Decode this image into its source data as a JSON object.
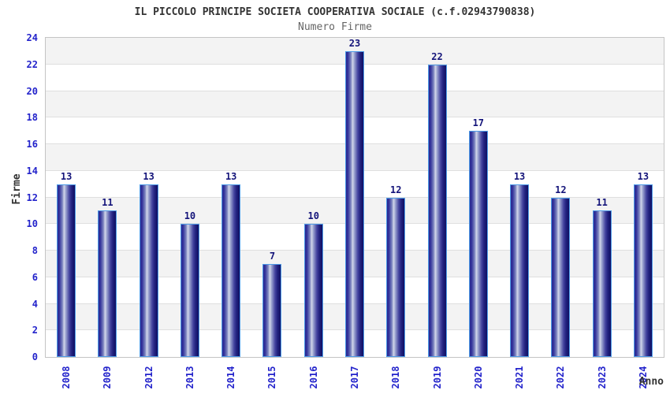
{
  "header": {
    "title": "IL PICCOLO PRINCIPE SOCIETA COOPERATIVA SOCIALE (c.f.02943790838)",
    "subtitle": "Numero Firme"
  },
  "chart_data": {
    "type": "bar",
    "title": "IL PICCOLO PRINCIPE SOCIETA COOPERATIVA SOCIALE (c.f.02943790838)",
    "subtitle": "Numero Firme",
    "xlabel": "Anno",
    "ylabel": "Firme",
    "categories": [
      "2008",
      "2009",
      "2012",
      "2013",
      "2014",
      "2015",
      "2016",
      "2017",
      "2018",
      "2019",
      "2020",
      "2021",
      "2022",
      "2023",
      "2024"
    ],
    "values": [
      13,
      11,
      13,
      10,
      13,
      7,
      10,
      23,
      12,
      22,
      17,
      13,
      12,
      11,
      13
    ],
    "ylim": [
      0,
      24
    ],
    "yticks": [
      0,
      2,
      4,
      6,
      8,
      10,
      12,
      14,
      16,
      18,
      20,
      22,
      24
    ],
    "grid": "horizontal-bands-alternating",
    "legend": "none",
    "bar_labels_shown": true
  },
  "colors": {
    "tick_label_blue": "#2323cb",
    "value_label_navy": "#14147a",
    "axis_title_gray": "#333333",
    "title_color": "#333333",
    "subtitle_color": "#666666",
    "band_gray": "#f3f3f3",
    "band_white": "#ffffff",
    "grid_line": "#dfdfdf",
    "plot_border": "#c4c4c4",
    "bar_border_lightblue": "#4e9ce8",
    "bar_gradient_dark": "#22227f",
    "bar_gradient_highlight": "#d2d7ea"
  }
}
